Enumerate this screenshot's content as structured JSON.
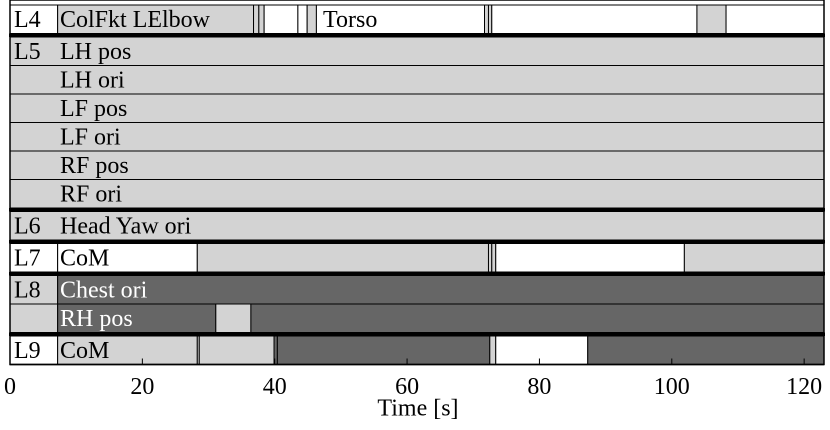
{
  "chart_data": {
    "type": "timeline",
    "xlabel": "Time [s]",
    "xlim": [
      0,
      123
    ],
    "xticks": [
      0,
      20,
      40,
      60,
      80,
      100,
      120
    ],
    "shades": {
      "white": "#ffffff",
      "light": "#d3d3d3",
      "dark": "#666666"
    },
    "groups": [
      {
        "name": "L4",
        "rows": [
          {
            "label": "ColFkt LElbow",
            "annotations": [
              {
                "text": "Torso",
                "x": 47.3
              }
            ],
            "segments": [
              {
                "start": 0,
                "end": 7.2,
                "shade": "white"
              },
              {
                "start": 7.2,
                "end": 36.8,
                "shade": "light"
              },
              {
                "start": 36.8,
                "end": 37.6,
                "shade": "light"
              },
              {
                "start": 37.6,
                "end": 38.4,
                "shade": "light"
              },
              {
                "start": 38.4,
                "end": 43.5,
                "shade": "white"
              },
              {
                "start": 43.5,
                "end": 44.9,
                "shade": "white"
              },
              {
                "start": 44.9,
                "end": 46.3,
                "shade": "light"
              },
              {
                "start": 46.3,
                "end": 71.7,
                "shade": "white"
              },
              {
                "start": 71.7,
                "end": 72.3,
                "shade": "light"
              },
              {
                "start": 72.3,
                "end": 72.8,
                "shade": "light"
              },
              {
                "start": 72.8,
                "end": 103.8,
                "shade": "white"
              },
              {
                "start": 103.8,
                "end": 108.2,
                "shade": "light"
              },
              {
                "start": 108.2,
                "end": 123,
                "shade": "white"
              }
            ]
          }
        ]
      },
      {
        "name": "L5",
        "rows": [
          {
            "label": "LH pos",
            "segments": [
              {
                "start": 0,
                "end": 123,
                "shade": "light"
              }
            ]
          },
          {
            "label": "LH ori",
            "segments": [
              {
                "start": 0,
                "end": 123,
                "shade": "light"
              }
            ]
          },
          {
            "label": "LF pos",
            "segments": [
              {
                "start": 0,
                "end": 123,
                "shade": "light"
              }
            ]
          },
          {
            "label": "LF ori",
            "segments": [
              {
                "start": 0,
                "end": 123,
                "shade": "light"
              }
            ]
          },
          {
            "label": "RF pos",
            "segments": [
              {
                "start": 0,
                "end": 123,
                "shade": "light"
              }
            ]
          },
          {
            "label": "RF ori",
            "segments": [
              {
                "start": 0,
                "end": 123,
                "shade": "light"
              }
            ]
          }
        ]
      },
      {
        "name": "L6",
        "rows": [
          {
            "label": "Head Yaw ori",
            "segments": [
              {
                "start": 0,
                "end": 123,
                "shade": "light"
              }
            ]
          }
        ]
      },
      {
        "name": "L7",
        "rows": [
          {
            "label": "CoM",
            "segments": [
              {
                "start": 0,
                "end": 7.2,
                "shade": "white"
              },
              {
                "start": 7.2,
                "end": 28.3,
                "shade": "white"
              },
              {
                "start": 28.3,
                "end": 72.3,
                "shade": "light"
              },
              {
                "start": 72.3,
                "end": 72.8,
                "shade": "light"
              },
              {
                "start": 72.8,
                "end": 73.4,
                "shade": "light"
              },
              {
                "start": 73.4,
                "end": 101.9,
                "shade": "white"
              },
              {
                "start": 101.9,
                "end": 123,
                "shade": "light"
              }
            ]
          }
        ]
      },
      {
        "name": "L8",
        "rows": [
          {
            "label": "Chest ori",
            "segments": [
              {
                "start": 0,
                "end": 7.2,
                "shade": "light"
              },
              {
                "start": 7.2,
                "end": 123,
                "shade": "dark"
              }
            ]
          },
          {
            "label": "RH pos",
            "segments": [
              {
                "start": 0,
                "end": 7.2,
                "shade": "light"
              },
              {
                "start": 7.2,
                "end": 31.1,
                "shade": "dark"
              },
              {
                "start": 31.1,
                "end": 36.4,
                "shade": "light"
              },
              {
                "start": 36.4,
                "end": 123,
                "shade": "dark"
              }
            ]
          }
        ]
      },
      {
        "name": "L9",
        "rows": [
          {
            "label": "CoM",
            "segments": [
              {
                "start": 0,
                "end": 7.2,
                "shade": "white"
              },
              {
                "start": 7.2,
                "end": 28.3,
                "shade": "light"
              },
              {
                "start": 28.3,
                "end": 28.6,
                "shade": "light"
              },
              {
                "start": 28.6,
                "end": 39.9,
                "shade": "light"
              },
              {
                "start": 39.9,
                "end": 40.4,
                "shade": "dark"
              },
              {
                "start": 40.4,
                "end": 72.5,
                "shade": "dark"
              },
              {
                "start": 72.5,
                "end": 73.4,
                "shade": "light"
              },
              {
                "start": 73.4,
                "end": 87.3,
                "shade": "white"
              },
              {
                "start": 87.3,
                "end": 123,
                "shade": "dark"
              }
            ]
          }
        ]
      }
    ]
  }
}
